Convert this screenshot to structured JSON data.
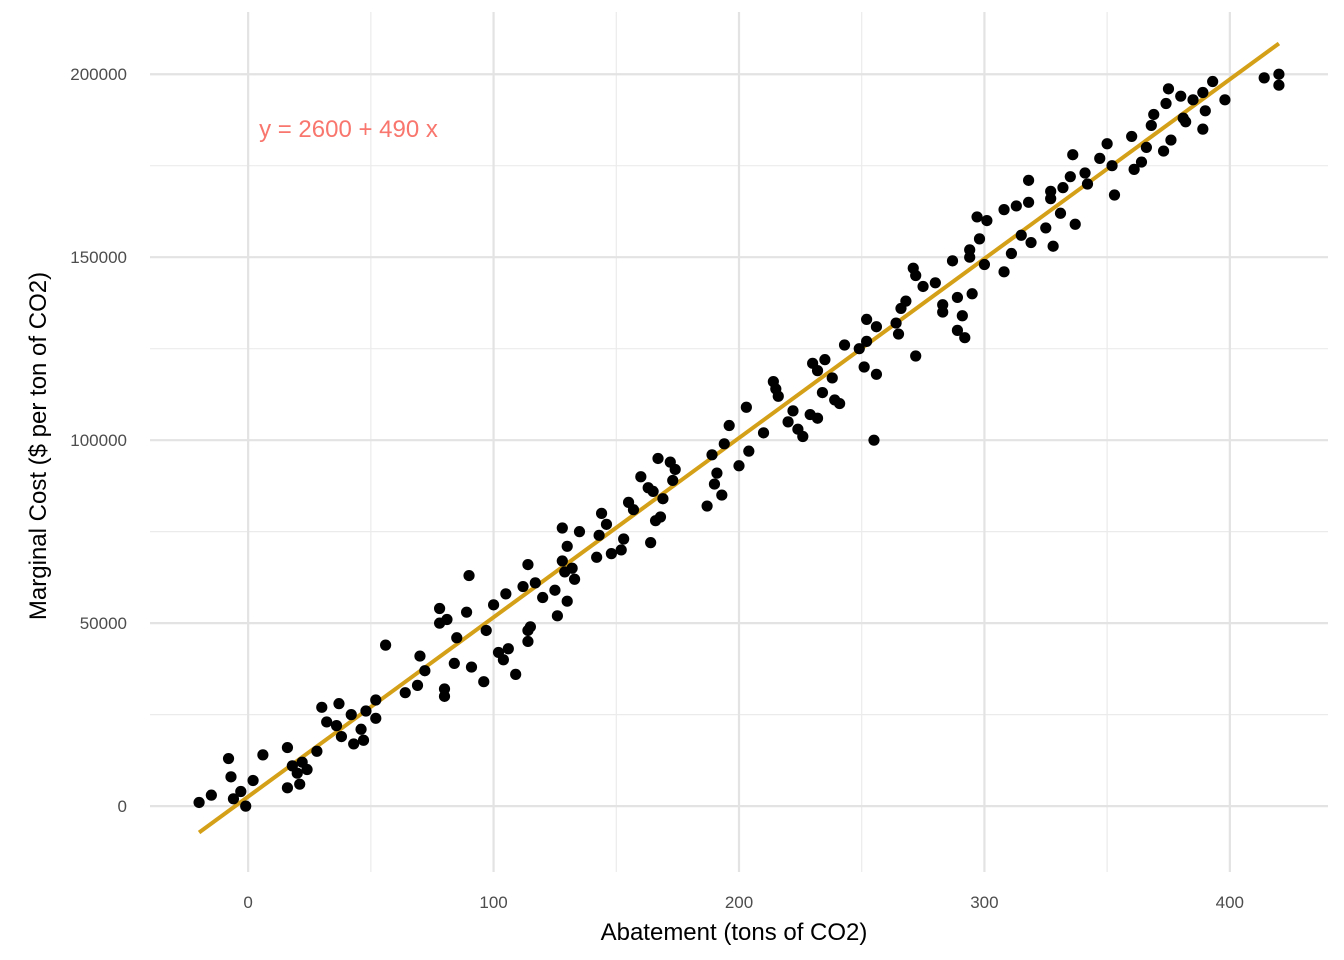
{
  "chart_data": {
    "type": "scatter",
    "xlabel": "Abatement (tons of CO2)",
    "ylabel": "Marginal Cost ($ per ton of CO2)",
    "xlim": [
      -40,
      440
    ],
    "ylim": [
      -18000,
      217000
    ],
    "x_ticks": [
      0,
      100,
      200,
      300,
      400
    ],
    "y_ticks": [
      0,
      50000,
      100000,
      150000,
      200000
    ],
    "x_tick_labels": [
      "0",
      "100",
      "200",
      "300",
      "400"
    ],
    "y_tick_labels": [
      "0",
      "50000",
      "100000",
      "150000",
      "200000"
    ],
    "grid": true,
    "legend": "none",
    "annotation": {
      "text": "y = 2600 + 490 x",
      "color": "#F8766D",
      "x": 24,
      "y": 185000
    },
    "point_color": "#000000",
    "fit_line": {
      "intercept": 2600,
      "slope": 490,
      "x_range": [
        -20,
        420
      ],
      "color": "#D4A017"
    },
    "points": [
      [
        -20,
        1000
      ],
      [
        -15,
        3000
      ],
      [
        -8,
        13000
      ],
      [
        -7,
        8000
      ],
      [
        -6,
        2000
      ],
      [
        -3,
        4000
      ],
      [
        -1,
        0
      ],
      [
        2,
        7000
      ],
      [
        6,
        14000
      ],
      [
        16,
        16000
      ],
      [
        16,
        5000
      ],
      [
        18,
        11000
      ],
      [
        20,
        9000
      ],
      [
        21,
        6000
      ],
      [
        22,
        12000
      ],
      [
        24,
        10000
      ],
      [
        28,
        15000
      ],
      [
        30,
        27000
      ],
      [
        32,
        23000
      ],
      [
        36,
        22000
      ],
      [
        37,
        28000
      ],
      [
        38,
        19000
      ],
      [
        42,
        25000
      ],
      [
        43,
        17000
      ],
      [
        46,
        21000
      ],
      [
        47,
        18000
      ],
      [
        48,
        26000
      ],
      [
        52,
        24000
      ],
      [
        52,
        29000
      ],
      [
        56,
        44000
      ],
      [
        64,
        31000
      ],
      [
        69,
        33000
      ],
      [
        70,
        41000
      ],
      [
        72,
        37000
      ],
      [
        78,
        54000
      ],
      [
        78,
        50000
      ],
      [
        80,
        32000
      ],
      [
        80,
        30000
      ],
      [
        81,
        51000
      ],
      [
        84,
        39000
      ],
      [
        85,
        46000
      ],
      [
        89,
        53000
      ],
      [
        90,
        63000
      ],
      [
        91,
        38000
      ],
      [
        96,
        34000
      ],
      [
        97,
        48000
      ],
      [
        100,
        55000
      ],
      [
        102,
        42000
      ],
      [
        104,
        40000
      ],
      [
        105,
        58000
      ],
      [
        106,
        43000
      ],
      [
        109,
        36000
      ],
      [
        112,
        60000
      ],
      [
        114,
        45000
      ],
      [
        114,
        48000
      ],
      [
        114,
        66000
      ],
      [
        115,
        49000
      ],
      [
        117,
        61000
      ],
      [
        120,
        57000
      ],
      [
        125,
        59000
      ],
      [
        126,
        52000
      ],
      [
        128,
        67000
      ],
      [
        128,
        76000
      ],
      [
        129,
        64000
      ],
      [
        130,
        71000
      ],
      [
        130,
        56000
      ],
      [
        132,
        65000
      ],
      [
        133,
        62000
      ],
      [
        135,
        75000
      ],
      [
        142,
        68000
      ],
      [
        143,
        74000
      ],
      [
        144,
        80000
      ],
      [
        146,
        77000
      ],
      [
        148,
        69000
      ],
      [
        152,
        70000
      ],
      [
        153,
        73000
      ],
      [
        155,
        83000
      ],
      [
        157,
        81000
      ],
      [
        160,
        90000
      ],
      [
        163,
        87000
      ],
      [
        164,
        72000
      ],
      [
        165,
        86000
      ],
      [
        166,
        78000
      ],
      [
        167,
        95000
      ],
      [
        168,
        79000
      ],
      [
        169,
        84000
      ],
      [
        172,
        94000
      ],
      [
        173,
        89000
      ],
      [
        174,
        92000
      ],
      [
        187,
        82000
      ],
      [
        189,
        96000
      ],
      [
        190,
        88000
      ],
      [
        191,
        91000
      ],
      [
        193,
        85000
      ],
      [
        194,
        99000
      ],
      [
        196,
        104000
      ],
      [
        200,
        93000
      ],
      [
        203,
        109000
      ],
      [
        204,
        97000
      ],
      [
        210,
        102000
      ],
      [
        214,
        116000
      ],
      [
        215,
        114000
      ],
      [
        216,
        112000
      ],
      [
        220,
        105000
      ],
      [
        222,
        108000
      ],
      [
        224,
        103000
      ],
      [
        226,
        101000
      ],
      [
        229,
        107000
      ],
      [
        230,
        121000
      ],
      [
        232,
        106000
      ],
      [
        232,
        119000
      ],
      [
        234,
        113000
      ],
      [
        235,
        122000
      ],
      [
        238,
        117000
      ],
      [
        239,
        111000
      ],
      [
        241,
        110000
      ],
      [
        243,
        126000
      ],
      [
        249,
        125000
      ],
      [
        251,
        120000
      ],
      [
        252,
        133000
      ],
      [
        252,
        127000
      ],
      [
        255,
        100000
      ],
      [
        256,
        131000
      ],
      [
        256,
        118000
      ],
      [
        264,
        132000
      ],
      [
        265,
        129000
      ],
      [
        266,
        136000
      ],
      [
        268,
        138000
      ],
      [
        271,
        147000
      ],
      [
        272,
        145000
      ],
      [
        272,
        123000
      ],
      [
        275,
        142000
      ],
      [
        280,
        143000
      ],
      [
        283,
        137000
      ],
      [
        283,
        135000
      ],
      [
        287,
        149000
      ],
      [
        289,
        139000
      ],
      [
        289,
        130000
      ],
      [
        291,
        134000
      ],
      [
        292,
        128000
      ],
      [
        294,
        152000
      ],
      [
        294,
        150000
      ],
      [
        295,
        140000
      ],
      [
        297,
        161000
      ],
      [
        298,
        155000
      ],
      [
        300,
        148000
      ],
      [
        301,
        160000
      ],
      [
        308,
        163000
      ],
      [
        308,
        146000
      ],
      [
        311,
        151000
      ],
      [
        313,
        164000
      ],
      [
        315,
        156000
      ],
      [
        318,
        171000
      ],
      [
        318,
        165000
      ],
      [
        319,
        154000
      ],
      [
        325,
        158000
      ],
      [
        327,
        168000
      ],
      [
        327,
        166000
      ],
      [
        328,
        153000
      ],
      [
        331,
        162000
      ],
      [
        332,
        169000
      ],
      [
        335,
        172000
      ],
      [
        336,
        178000
      ],
      [
        337,
        159000
      ],
      [
        341,
        173000
      ],
      [
        342,
        170000
      ],
      [
        347,
        177000
      ],
      [
        350,
        181000
      ],
      [
        352,
        175000
      ],
      [
        353,
        167000
      ],
      [
        360,
        183000
      ],
      [
        361,
        174000
      ],
      [
        364,
        176000
      ],
      [
        366,
        180000
      ],
      [
        368,
        186000
      ],
      [
        369,
        189000
      ],
      [
        373,
        179000
      ],
      [
        374,
        192000
      ],
      [
        375,
        196000
      ],
      [
        376,
        182000
      ],
      [
        380,
        194000
      ],
      [
        381,
        188000
      ],
      [
        382,
        187000
      ],
      [
        385,
        193000
      ],
      [
        389,
        195000
      ],
      [
        389,
        185000
      ],
      [
        390,
        190000
      ],
      [
        393,
        198000
      ],
      [
        398,
        193000
      ],
      [
        414,
        199000
      ],
      [
        420,
        197000
      ],
      [
        420,
        200000
      ]
    ]
  }
}
